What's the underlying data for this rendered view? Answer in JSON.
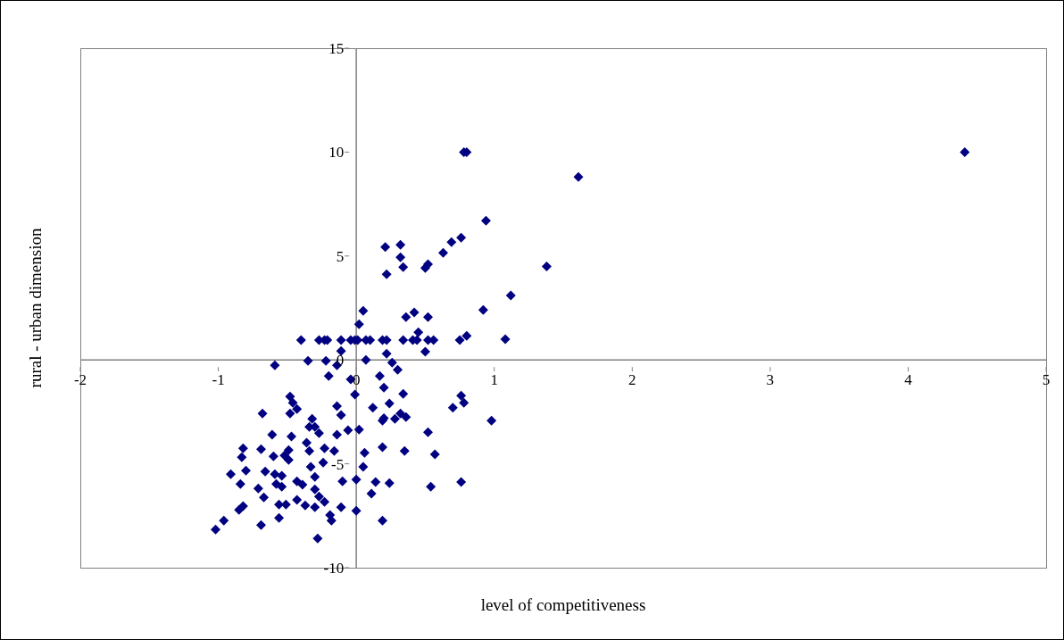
{
  "chart_data": {
    "type": "scatter",
    "xlabel": "level of competitiveness",
    "ylabel": "rural - urban dimension",
    "x": [
      4.41,
      0.78,
      0.8,
      1.61,
      0.94,
      1.38,
      1.12,
      0.92,
      1.08,
      0.21,
      0.32,
      0.32,
      0.34,
      0.22,
      0.5,
      0.52,
      0.63,
      0.69,
      0.76,
      0.05,
      0.02,
      0.36,
      0.42,
      0.52,
      0.45,
      0.01,
      0.07,
      0.1,
      0.19,
      0.22,
      0.34,
      0.41,
      0.44,
      0.52,
      0.56,
      0.75,
      0.8,
      0.5,
      0.22,
      0.07,
      0.26,
      0.3,
      0.17,
      0.2,
      0.34,
      0.24,
      0.12,
      0.76,
      0.78,
      0.7,
      0.32,
      0.2,
      0.19,
      0.28,
      0.36,
      0.98,
      0.02,
      0.52,
      0.19,
      0.35,
      0.06,
      0.57,
      0.05,
      0.0,
      0.14,
      0.24,
      0.11,
      0.54,
      0.76,
      0.19,
      0.0,
      -0.4,
      -0.27,
      -0.23,
      -0.21,
      -0.11,
      -0.04,
      -0.01,
      -0.11,
      -0.59,
      -0.35,
      -0.22,
      -0.14,
      -0.2,
      -0.04,
      -0.01,
      -0.48,
      -0.46,
      -0.43,
      -0.68,
      -0.48,
      -0.14,
      -0.11,
      -0.32,
      -0.34,
      -0.3,
      -0.27,
      -0.06,
      -0.14,
      -0.61,
      -0.47,
      -0.82,
      -0.69,
      -0.83,
      -0.6,
      -0.52,
      -0.49,
      -0.36,
      -0.34,
      -0.23,
      -0.16,
      -0.49,
      -0.24,
      -0.33,
      -0.91,
      -0.8,
      -0.66,
      -0.59,
      -0.54,
      -0.3,
      -0.84,
      -0.71,
      -0.58,
      -0.54,
      -0.43,
      -0.39,
      -0.3,
      -0.1,
      -0.67,
      -0.27,
      -0.56,
      -0.51,
      -0.43,
      -0.37,
      -0.3,
      -0.23,
      -0.11,
      -0.19,
      -0.18,
      -0.82,
      -0.85,
      -0.56,
      -0.69,
      -0.96,
      -1.02,
      -0.28
    ],
    "values": [
      10.0,
      10.0,
      10.0,
      8.8,
      6.7,
      4.5,
      3.1,
      2.4,
      1.0,
      5.43,
      5.54,
      4.94,
      4.47,
      4.12,
      4.42,
      4.6,
      5.15,
      5.67,
      5.88,
      2.36,
      1.72,
      2.06,
      2.28,
      2.06,
      1.33,
      0.95,
      0.95,
      0.95,
      0.95,
      0.95,
      0.95,
      0.95,
      0.95,
      0.95,
      0.95,
      0.95,
      1.16,
      0.39,
      0.3,
      0.0,
      -0.13,
      -0.47,
      -0.77,
      -1.33,
      -1.63,
      -2.1,
      -2.3,
      -1.72,
      -2.06,
      -2.3,
      -2.58,
      -2.8,
      -2.92,
      -2.84,
      -2.75,
      -2.92,
      -3.35,
      -3.48,
      -4.2,
      -4.38,
      -4.47,
      -4.55,
      -5.15,
      -5.76,
      -5.88,
      -5.93,
      -6.44,
      -6.1,
      -5.88,
      -7.73,
      -7.26,
      0.95,
      0.95,
      0.95,
      0.95,
      0.95,
      0.95,
      0.95,
      0.43,
      -0.26,
      -0.04,
      -0.04,
      -0.26,
      -0.77,
      -0.94,
      -1.67,
      -1.76,
      -2.06,
      -2.36,
      -2.58,
      -2.58,
      -2.23,
      -2.66,
      -2.84,
      -3.22,
      -3.22,
      -3.52,
      -3.39,
      -3.6,
      -3.6,
      -3.69,
      -4.25,
      -4.3,
      -4.68,
      -4.64,
      -4.6,
      -4.34,
      -3.99,
      -4.38,
      -4.25,
      -4.38,
      -4.81,
      -4.94,
      -5.15,
      -5.5,
      -5.33,
      -5.37,
      -5.5,
      -5.58,
      -5.63,
      -5.97,
      -6.19,
      -5.97,
      -6.1,
      -5.84,
      -6.01,
      -6.23,
      -5.84,
      -6.62,
      -6.57,
      -6.96,
      -6.96,
      -6.74,
      -7.0,
      -7.09,
      -6.83,
      -7.09,
      -7.47,
      -7.73,
      -7.04,
      -7.22,
      -7.6,
      -7.95,
      -7.73,
      -8.16,
      -8.59
    ],
    "color": "#000080",
    "marker": "diamond",
    "xlim": [
      -2,
      5
    ],
    "xticks": [
      -2,
      -1,
      0,
      1,
      2,
      3,
      4,
      5
    ],
    "ylim": [
      -10,
      15
    ],
    "yticks": [
      -10,
      -5,
      0,
      5,
      10,
      15
    ],
    "grid": false
  }
}
